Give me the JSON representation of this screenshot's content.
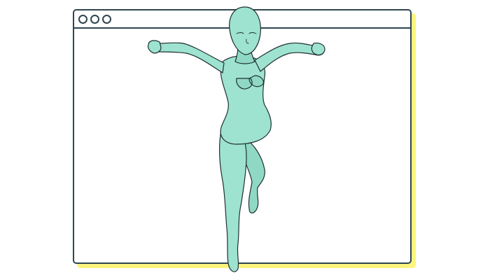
{
  "window": {
    "controls": [
      "window-dot-icon",
      "window-dot-icon",
      "window-dot-icon"
    ]
  },
  "figure": {
    "icon": "mannequin-figure",
    "fill_color": "#9ee3cf",
    "shade_color": "#7fcdb7",
    "outline_color": "#1f2f33"
  },
  "colors": {
    "frame": "#2f4650",
    "shadow": "#fbf47d",
    "background": "#ffffff"
  }
}
